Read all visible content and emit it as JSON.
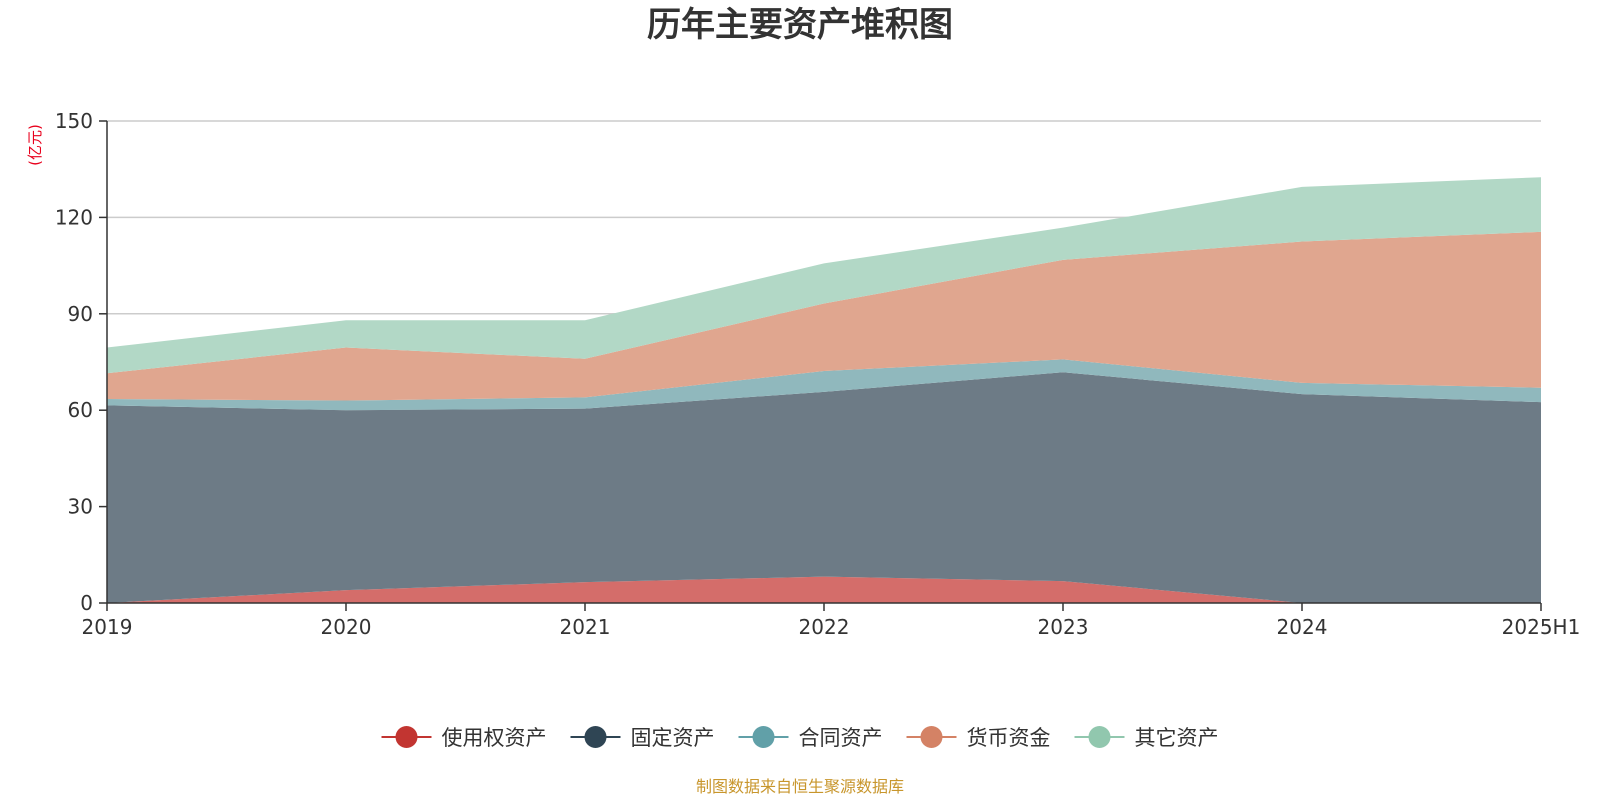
{
  "chart_data": {
    "type": "area",
    "stacked": true,
    "title": "历年主要资产堆积图",
    "unit_label": "(亿元)",
    "categories": [
      "2019",
      "2020",
      "2021",
      "2022",
      "2023",
      "2024",
      "2025H1"
    ],
    "ylim": [
      0,
      150
    ],
    "y_ticks": [
      0,
      30,
      60,
      90,
      120,
      150
    ],
    "grid": true,
    "legend_position": "bottom",
    "series": [
      {
        "name": "使用权资产",
        "color": "#c23531",
        "fill": "#d46d6a",
        "values": [
          0,
          4,
          6.5,
          8.2,
          6.8,
          0,
          0
        ]
      },
      {
        "name": "固定资产",
        "color": "#2f4554",
        "fill": "#6d7b86",
        "values": [
          61.5,
          56,
          54,
          57.5,
          65,
          65,
          62.5
        ]
      },
      {
        "name": "合同资产",
        "color": "#61a0a8",
        "fill": "#90b8bd",
        "values": [
          2,
          3,
          3.5,
          6.5,
          4,
          3.5,
          4.5
        ]
      },
      {
        "name": "货币资金",
        "color": "#d48265",
        "fill": "#e0a68f",
        "values": [
          8,
          16.5,
          12,
          21,
          31,
          44,
          48.5
        ]
      },
      {
        "name": "其它资产",
        "color": "#91c7ae",
        "fill": "#b2d8c6",
        "values": [
          8,
          8.5,
          12,
          12.5,
          10,
          17,
          17
        ]
      }
    ],
    "source_note": "制图数据来自恒生聚源数据库",
    "unit_color": "#e8001c",
    "source_color": "#c8962c"
  }
}
